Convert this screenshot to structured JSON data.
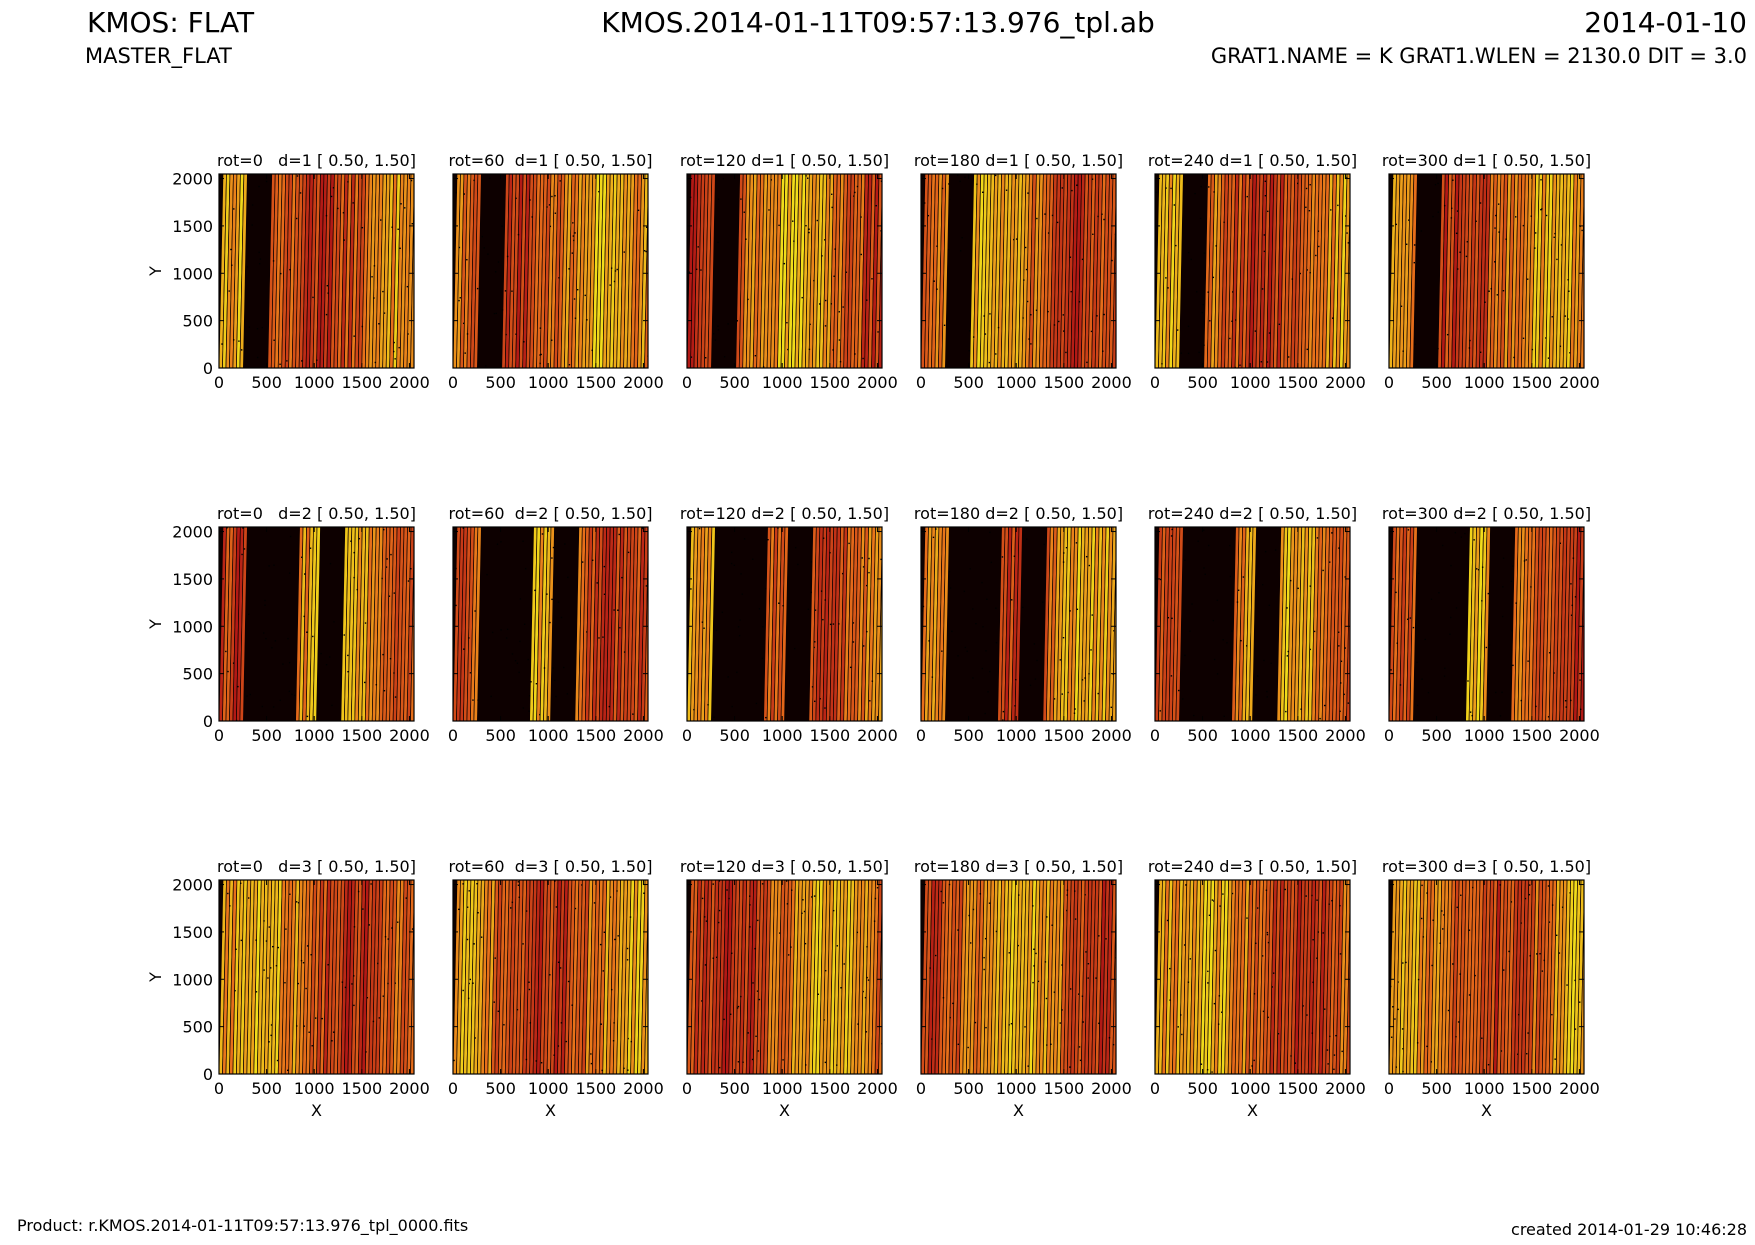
{
  "header": {
    "title_left": "KMOS: FLAT",
    "subtitle_left": "MASTER_FLAT",
    "title_center": "KMOS.2014-01-11T09:57:13.976_tpl.ab",
    "title_right": "2014-01-10",
    "subtitle_right": "GRAT1.NAME = K GRAT1.WLEN = 2130.0 DIT = 3.0"
  },
  "footer": {
    "product": "Product: r.KMOS.2014-01-11T09:57:13.976_tpl_0000.fits",
    "created": "created 2014-01-29 10:46:28"
  },
  "colors": {
    "dark": "#0d0000",
    "red": "#b01515",
    "orange": "#e8701a",
    "yellow": "#f2e21a"
  },
  "chart_data": {
    "type": "heatmap",
    "grid": {
      "rows": 3,
      "cols": 6
    },
    "xlabel": "X",
    "ylabel": "Y",
    "xlim": [
      0,
      2048
    ],
    "ylim": [
      0,
      2048
    ],
    "xticks": [
      0,
      500,
      1000,
      1500,
      2000
    ],
    "yticks": [
      0,
      500,
      1000,
      1500,
      2000
    ],
    "colormap": "hot",
    "panels": [
      {
        "title": "rot=0   d=1 [ 0.50, 1.50]",
        "rot": 0,
        "detector": 1,
        "gaps": [
          [
            270,
            530
          ]
        ]
      },
      {
        "title": "rot=60  d=1 [ 0.50, 1.50]",
        "rot": 60,
        "detector": 1,
        "gaps": [
          [
            270,
            530
          ]
        ]
      },
      {
        "title": "rot=120 d=1 [ 0.50, 1.50]",
        "rot": 120,
        "detector": 1,
        "gaps": [
          [
            270,
            530
          ]
        ]
      },
      {
        "title": "rot=180 d=1 [ 0.50, 1.50]",
        "rot": 180,
        "detector": 1,
        "gaps": [
          [
            270,
            530
          ]
        ]
      },
      {
        "title": "rot=240 d=1 [ 0.50, 1.50]",
        "rot": 240,
        "detector": 1,
        "gaps": [
          [
            270,
            530
          ]
        ]
      },
      {
        "title": "rot=300 d=1 [ 0.50, 1.50]",
        "rot": 300,
        "detector": 1,
        "gaps": [
          [
            270,
            530
          ]
        ]
      },
      {
        "title": "rot=0   d=2 [ 0.50, 1.50]",
        "rot": 0,
        "detector": 2,
        "gaps": [
          [
            270,
            790
          ],
          [
            1030,
            1290
          ]
        ]
      },
      {
        "title": "rot=60  d=2 [ 0.50, 1.50]",
        "rot": 60,
        "detector": 2,
        "gaps": [
          [
            270,
            790
          ],
          [
            1030,
            1290
          ]
        ]
      },
      {
        "title": "rot=120 d=2 [ 0.50, 1.50]",
        "rot": 120,
        "detector": 2,
        "gaps": [
          [
            270,
            790
          ],
          [
            1030,
            1290
          ]
        ]
      },
      {
        "title": "rot=180 d=2 [ 0.50, 1.50]",
        "rot": 180,
        "detector": 2,
        "gaps": [
          [
            270,
            790
          ],
          [
            1030,
            1290
          ]
        ]
      },
      {
        "title": "rot=240 d=2 [ 0.50, 1.50]",
        "rot": 240,
        "detector": 2,
        "gaps": [
          [
            270,
            790
          ],
          [
            1030,
            1290
          ]
        ]
      },
      {
        "title": "rot=300 d=2 [ 0.50, 1.50]",
        "rot": 300,
        "detector": 2,
        "gaps": [
          [
            270,
            790
          ],
          [
            1030,
            1290
          ]
        ]
      },
      {
        "title": "rot=0   d=3 [ 0.50, 1.50]",
        "rot": 0,
        "detector": 3,
        "gaps": []
      },
      {
        "title": "rot=60  d=3 [ 0.50, 1.50]",
        "rot": 60,
        "detector": 3,
        "gaps": []
      },
      {
        "title": "rot=120 d=3 [ 0.50, 1.50]",
        "rot": 120,
        "detector": 3,
        "gaps": []
      },
      {
        "title": "rot=180 d=3 [ 0.50, 1.50]",
        "rot": 180,
        "detector": 3,
        "gaps": []
      },
      {
        "title": "rot=240 d=3 [ 0.50, 1.50]",
        "rot": 240,
        "detector": 3,
        "gaps": []
      },
      {
        "title": "rot=300 d=3 [ 0.50, 1.50]",
        "rot": 300,
        "detector": 3,
        "gaps": []
      }
    ]
  }
}
